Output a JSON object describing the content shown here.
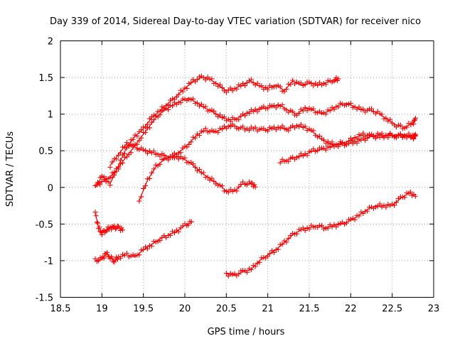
{
  "chart_data": {
    "type": "scatter",
    "title": "Day 339 of 2014, Sidereal Day-to-day VTEC variation (SDTVAR) for receiver nico",
    "xlabel": "GPS time / hours",
    "ylabel": "SDTVAR / TECUs",
    "xlim": [
      18.5,
      23
    ],
    "ylim": [
      -1.5,
      2
    ],
    "xticks": [
      "18.5",
      "19",
      "19.5",
      "20",
      "20.5",
      "21",
      "21.5",
      "22",
      "22.5",
      "23"
    ],
    "yticks": [
      "-1.5",
      "-1",
      "-0.5",
      "0",
      "0.5",
      "1",
      "1.5",
      "2"
    ],
    "grid": true,
    "marker": "plus",
    "color": "#ff0000",
    "series": [
      {
        "name": "s1",
        "x": [
          18.92,
          19.0,
          19.1,
          19.2,
          19.3,
          19.4,
          19.5,
          19.6,
          19.7,
          19.8,
          19.9,
          20.0,
          20.1,
          20.2,
          20.3,
          20.4,
          20.5,
          20.6,
          20.7,
          20.8,
          20.9,
          21.0,
          21.1,
          21.2,
          21.3,
          21.4,
          21.5,
          21.6,
          21.7,
          21.8,
          21.85
        ],
        "y": [
          0.0,
          0.15,
          0.05,
          0.3,
          0.55,
          0.7,
          0.8,
          0.95,
          1.05,
          1.15,
          1.25,
          1.35,
          1.45,
          1.5,
          1.48,
          1.4,
          1.32,
          1.35,
          1.4,
          1.45,
          1.38,
          1.35,
          1.4,
          1.32,
          1.45,
          1.4,
          1.42,
          1.4,
          1.43,
          1.47,
          1.48
        ]
      },
      {
        "name": "s2",
        "x": [
          18.95,
          19.05,
          19.15,
          19.25,
          19.35,
          19.45,
          19.55,
          19.65,
          19.75,
          19.85,
          19.95,
          20.05,
          20.15,
          20.25,
          20.35,
          20.45,
          20.55,
          20.65,
          20.75,
          20.85,
          20.95,
          21.05,
          21.15,
          21.25,
          21.35,
          21.45,
          21.55,
          21.65,
          21.75,
          21.85,
          21.95,
          22.05,
          22.15,
          22.25,
          22.35,
          22.45,
          22.55,
          22.65,
          22.75,
          22.78
        ],
        "y": [
          0.05,
          0.1,
          0.2,
          0.35,
          0.5,
          0.65,
          0.8,
          0.95,
          1.05,
          1.12,
          1.18,
          1.22,
          1.15,
          1.08,
          1.02,
          0.95,
          0.92,
          0.95,
          1.02,
          1.05,
          1.08,
          1.1,
          1.12,
          1.05,
          1.0,
          1.08,
          1.05,
          1.0,
          1.05,
          1.12,
          1.15,
          1.1,
          1.05,
          1.05,
          1.0,
          0.92,
          0.85,
          0.82,
          0.88,
          0.92
        ]
      },
      {
        "name": "s3",
        "x": [
          19.45,
          19.55,
          19.65,
          19.75,
          19.85,
          19.95,
          20.05,
          20.15,
          20.25,
          20.35,
          20.45,
          20.55,
          20.65,
          20.75,
          20.85,
          20.95,
          21.05,
          21.15,
          21.25,
          21.35,
          21.45,
          21.55,
          21.65,
          21.75,
          21.85,
          21.95,
          22.05,
          22.15,
          22.25,
          22.35,
          22.45,
          22.55,
          22.65,
          22.75,
          22.78
        ],
        "y": [
          -0.18,
          0.1,
          0.28,
          0.38,
          0.42,
          0.5,
          0.6,
          0.72,
          0.78,
          0.75,
          0.8,
          0.85,
          0.82,
          0.8,
          0.8,
          0.78,
          0.8,
          0.82,
          0.8,
          0.85,
          0.82,
          0.75,
          0.65,
          0.6,
          0.58,
          0.6,
          0.62,
          0.65,
          0.7,
          0.72,
          0.7,
          0.72,
          0.7,
          0.68,
          0.7
        ]
      },
      {
        "name": "s4",
        "x": [
          19.1,
          19.2,
          19.3,
          19.4,
          19.5,
          19.6,
          19.7,
          19.8,
          19.9,
          20.0,
          20.1,
          20.2,
          20.3,
          20.4,
          20.5,
          20.6,
          20.7,
          20.8,
          20.85
        ],
        "y": [
          0.3,
          0.45,
          0.6,
          0.55,
          0.5,
          0.48,
          0.45,
          0.42,
          0.42,
          0.38,
          0.3,
          0.2,
          0.12,
          0.05,
          -0.05,
          -0.05,
          0.05,
          0.05,
          0.02
        ]
      },
      {
        "name": "s5",
        "x": [
          21.15,
          21.25,
          21.35,
          21.45,
          21.55,
          21.65,
          21.75,
          21.85,
          21.95,
          22.05,
          22.15,
          22.25,
          22.35,
          22.45,
          22.55,
          22.65,
          22.75,
          22.78
        ],
        "y": [
          0.35,
          0.38,
          0.42,
          0.45,
          0.5,
          0.52,
          0.55,
          0.6,
          0.62,
          0.68,
          0.72,
          0.7,
          0.68,
          0.72,
          0.7,
          0.72,
          0.7,
          0.68
        ]
      },
      {
        "name": "s6",
        "x": [
          18.92,
          18.96,
          19.0,
          19.05,
          19.1,
          19.15,
          19.2,
          19.25
        ],
        "y": [
          -0.35,
          -0.55,
          -0.62,
          -0.58,
          -0.55,
          -0.55,
          -0.55,
          -0.58
        ]
      },
      {
        "name": "s7",
        "x": [
          18.92,
          19.0,
          19.05,
          19.1,
          19.15,
          19.2,
          19.3,
          19.4,
          19.5,
          19.6,
          19.7,
          19.8,
          19.9,
          20.0,
          20.08
        ],
        "y": [
          -1.0,
          -0.98,
          -0.9,
          -0.95,
          -1.0,
          -0.95,
          -0.92,
          -0.95,
          -0.85,
          -0.78,
          -0.7,
          -0.65,
          -0.6,
          -0.52,
          -0.48
        ]
      },
      {
        "name": "s8",
        "x": [
          20.5,
          20.6,
          20.7,
          20.8,
          20.9,
          21.0,
          21.1,
          21.2,
          21.3,
          21.4,
          21.5,
          21.6,
          21.7,
          21.8,
          21.9,
          22.0,
          22.1,
          22.2,
          22.3,
          22.4,
          22.5,
          22.6,
          22.7,
          22.78
        ],
        "y": [
          -1.18,
          -1.2,
          -1.15,
          -1.12,
          -1.0,
          -0.92,
          -0.85,
          -0.75,
          -0.65,
          -0.58,
          -0.55,
          -0.52,
          -0.55,
          -0.52,
          -0.5,
          -0.45,
          -0.38,
          -0.3,
          -0.25,
          -0.25,
          -0.25,
          -0.15,
          -0.08,
          -0.1
        ]
      }
    ]
  }
}
